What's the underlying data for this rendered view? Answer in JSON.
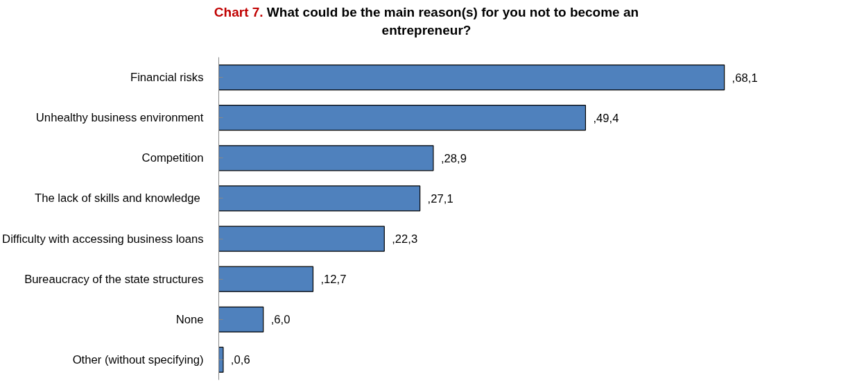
{
  "chart_data": {
    "type": "bar",
    "orientation": "horizontal",
    "title": "Chart 7. What could be the main reason(s) for you not to become an entrepreneur?",
    "categories": [
      "Financial risks",
      "Unhealthy business environment",
      "Competition",
      "The lack of skills and knowledge ",
      "Difficulty with accessing business loans",
      "Bureaucracy of the state structures",
      "None",
      "Other (without specifying)"
    ],
    "values": [
      68.1,
      49.4,
      28.9,
      27.1,
      22.3,
      12.7,
      6.0,
      0.6
    ],
    "value_labels": [
      ",68,1",
      ",49,4",
      ",28,9",
      ",27,1",
      ",22,3",
      ",12,7",
      ",6,0",
      ",0,6"
    ],
    "color": "#4f81bd",
    "tick_labels": "y",
    "grid": false
  }
}
